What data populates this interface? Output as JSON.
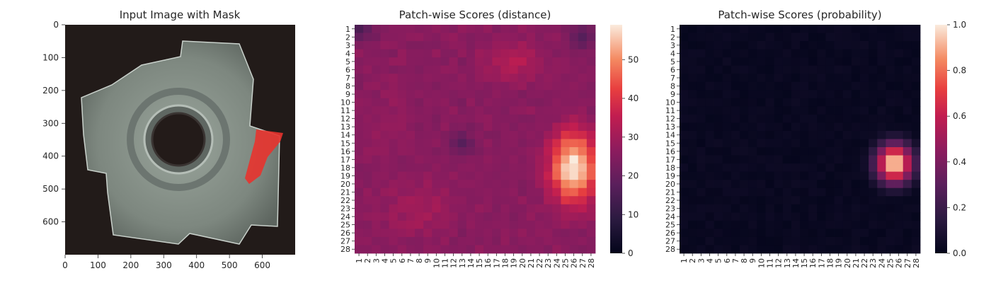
{
  "chart_data": [
    {
      "type": "image",
      "title": "Input Image with Mask",
      "xticks": [
        0,
        100,
        200,
        300,
        400,
        500,
        600
      ],
      "yticks": [
        0,
        100,
        200,
        300,
        400,
        500,
        600
      ],
      "xlim": [
        0,
        700
      ],
      "ylim": [
        0,
        700
      ],
      "colors": {
        "background": "#221b19",
        "object": "#8a948c",
        "mask": "#e8332e"
      }
    },
    {
      "type": "heatmap",
      "title": "Patch-wise Scores (distance)",
      "rows": 28,
      "cols": 28,
      "xticklabels": [
        "1",
        "2",
        "3",
        "4",
        "5",
        "6",
        "7",
        "8",
        "9",
        "10",
        "11",
        "12",
        "13",
        "14",
        "15",
        "16",
        "17",
        "18",
        "19",
        "20",
        "21",
        "22",
        "23",
        "24",
        "25",
        "26",
        "27",
        "28"
      ],
      "yticklabels": [
        "1",
        "2",
        "3",
        "4",
        "5",
        "6",
        "7",
        "8",
        "9",
        "10",
        "11",
        "12",
        "13",
        "14",
        "15",
        "16",
        "17",
        "18",
        "19",
        "20",
        "21",
        "22",
        "23",
        "24",
        "25",
        "26",
        "27",
        "28"
      ],
      "vmin": 0,
      "vmax": 59,
      "colorbar_ticks": [
        0,
        10,
        20,
        30,
        40,
        50
      ],
      "colormap": "rocket",
      "base_value": 24,
      "hotspots": [
        {
          "row": 18,
          "col": 26,
          "value": 59,
          "sigma_row": 3.2,
          "sigma_col": 2.0
        },
        {
          "row": 5,
          "col": 19,
          "value": 33,
          "sigma_row": 2.0,
          "sigma_col": 3.0
        },
        {
          "row": 23,
          "col": 8,
          "value": 30,
          "sigma_row": 3.0,
          "sigma_col": 4.0
        },
        {
          "row": 12,
          "col": 4,
          "value": 27,
          "sigma_row": 4.0,
          "sigma_col": 3.0
        }
      ],
      "low_spots": [
        {
          "row": 15,
          "col": 13,
          "value": 17
        },
        {
          "row": 1,
          "col": 1,
          "value": 15
        },
        {
          "row": 2,
          "col": 27,
          "value": 17
        }
      ]
    },
    {
      "type": "heatmap",
      "title": "Patch-wise Scores (probability)",
      "rows": 28,
      "cols": 28,
      "xticklabels": [
        "1",
        "2",
        "3",
        "4",
        "5",
        "6",
        "7",
        "8",
        "9",
        "10",
        "11",
        "12",
        "13",
        "14",
        "15",
        "16",
        "17",
        "18",
        "19",
        "20",
        "21",
        "22",
        "23",
        "24",
        "25",
        "26",
        "27",
        "28"
      ],
      "yticklabels": [
        "1",
        "2",
        "3",
        "4",
        "5",
        "6",
        "7",
        "8",
        "9",
        "10",
        "11",
        "12",
        "13",
        "14",
        "15",
        "16",
        "17",
        "18",
        "19",
        "20",
        "21",
        "22",
        "23",
        "24",
        "25",
        "26",
        "27",
        "28"
      ],
      "vmin": 0,
      "vmax": 1.0,
      "colorbar_ticks": [
        "0.0",
        "0.2",
        "0.4",
        "0.6",
        "0.8",
        "1.0"
      ],
      "colormap": "rocket",
      "base_value": 0.01,
      "hotspots": [
        {
          "row": 17.5,
          "col": 25.5,
          "value": 1.0,
          "sigma_row": 1.6,
          "sigma_col": 1.4
        }
      ],
      "low_spots": []
    }
  ]
}
